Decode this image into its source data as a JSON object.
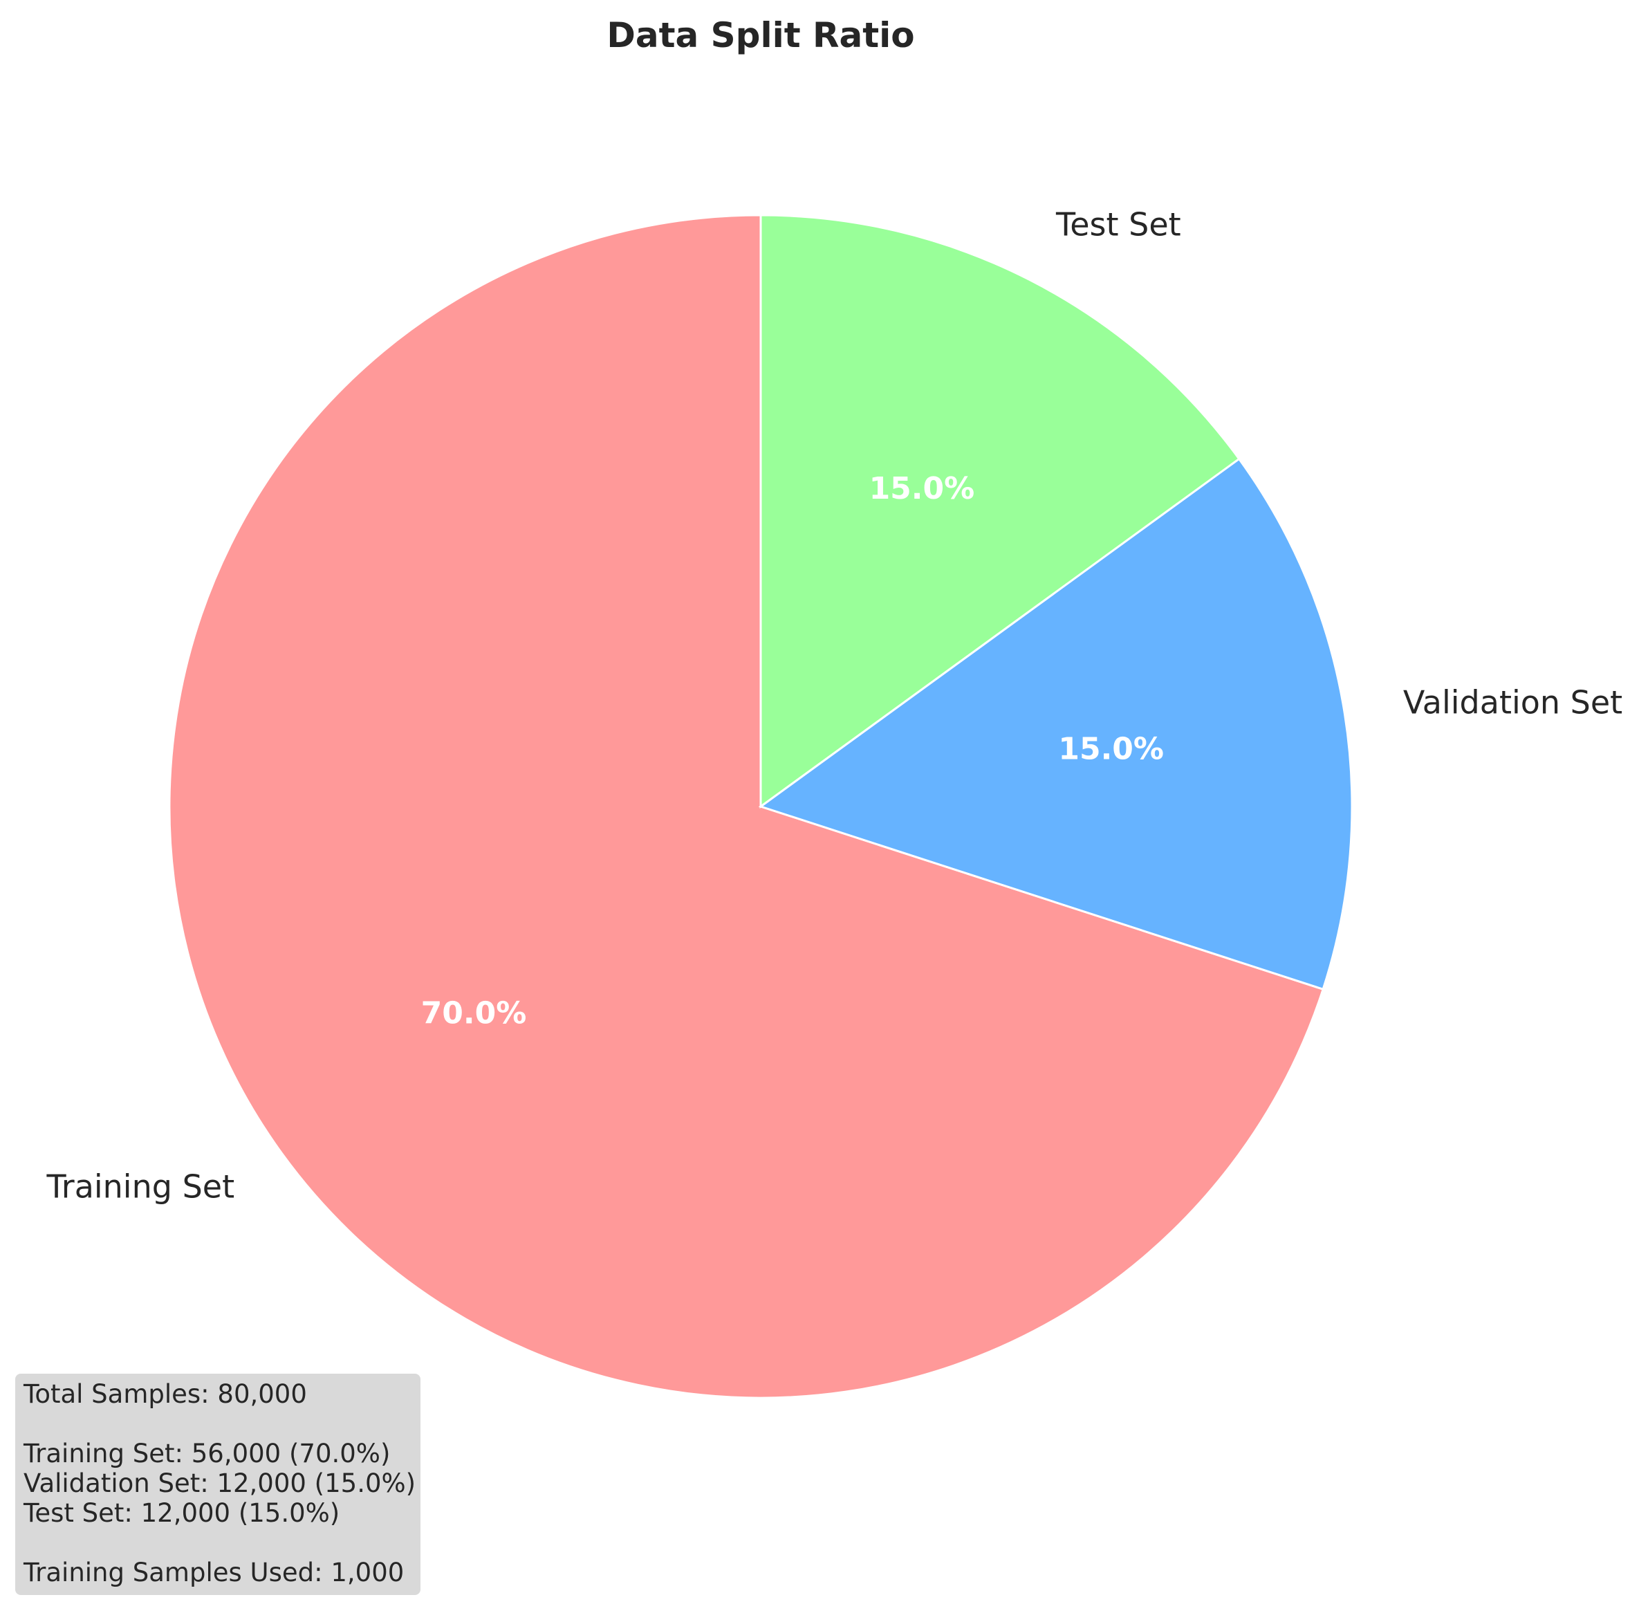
{
  "chart_data": {
    "type": "pie",
    "title": "Data Split Ratio",
    "start_angle_deg": 90,
    "direction": "counterclockwise",
    "slices": [
      {
        "label": "Training Set",
        "value": 70.0,
        "pct_label": "70.0%",
        "color": "#ff9999"
      },
      {
        "label": "Validation Set",
        "value": 15.0,
        "pct_label": "15.0%",
        "color": "#66b3ff"
      },
      {
        "label": "Test Set",
        "value": 15.0,
        "pct_label": "15.0%",
        "color": "#99ff99"
      }
    ],
    "edge_color": "#ffffff"
  },
  "info_box": {
    "total": "Total Samples: 80,000",
    "training": "Training Set: 56,000 (70.0%)",
    "validation": "Validation Set: 12,000 (15.0%)",
    "test": "Test Set: 12,000 (15.0%)",
    "used": "Training Samples Used: 1,000"
  }
}
